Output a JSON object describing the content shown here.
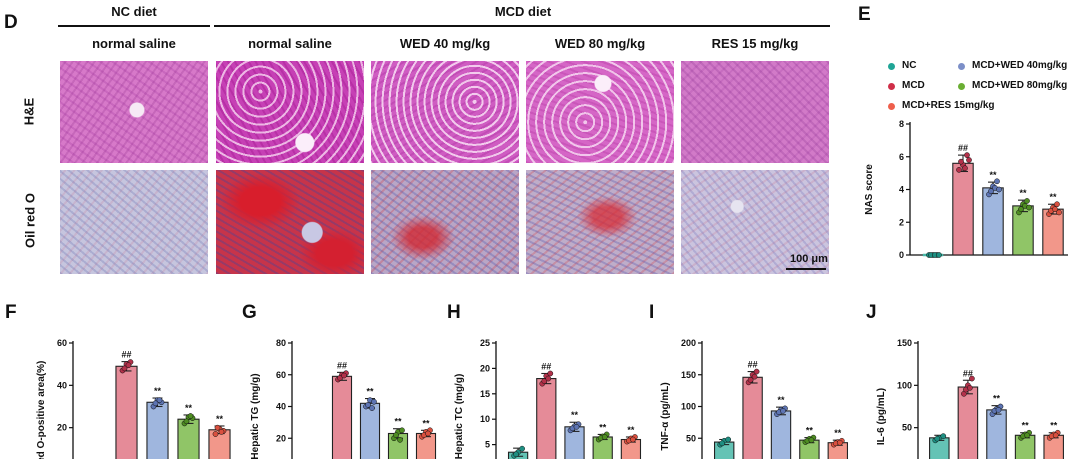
{
  "figure": {
    "panel_d": {
      "letter": "D",
      "group_headers": [
        {
          "label": "NC diet"
        },
        {
          "label": "MCD diet"
        }
      ],
      "column_headers": [
        "normal saline",
        "normal saline",
        "WED 40 mg/kg",
        "WED 80 mg/kg",
        "RES 15 mg/kg"
      ],
      "row_labels": [
        "H&E",
        "Oil red O"
      ],
      "scale_bar": "100 μm"
    }
  },
  "colors": {
    "NC": "#49b9a8",
    "MCD": "#e07786",
    "MCD+WED 40mg/kg": "#8ea9d8",
    "MCD+WED 80mg/kg": "#7dbb4c",
    "MCD+RES 15mg/kg": "#f08576"
  },
  "legend": [
    {
      "label": "NC",
      "color": "#1fa596"
    },
    {
      "label": "MCD",
      "color": "#cf2f48"
    },
    {
      "label": "MCD+RES 15mg/kg",
      "color": "#ee5f4c"
    },
    {
      "label": "MCD+WED 40mg/kg",
      "color": "#7c8fc8"
    },
    {
      "label": "MCD+WED 80mg/kg",
      "color": "#6aae33"
    }
  ],
  "chart_data": [
    {
      "letter": "E",
      "type": "bar",
      "title": "",
      "ylabel": "NAS score",
      "ylim": [
        0,
        8
      ],
      "yticks": [
        0,
        2,
        4,
        6,
        8
      ],
      "categories": [
        "NC",
        "MCD",
        "MCD+WED 40mg/kg",
        "MCD+WED 80mg/kg",
        "MCD+RES 15mg/kg"
      ],
      "values": [
        0,
        5.6,
        4.1,
        3.0,
        2.8
      ],
      "errors": [
        0.05,
        0.5,
        0.35,
        0.35,
        0.3
      ],
      "points": [
        [
          0,
          0,
          0,
          0,
          0,
          0
        ],
        [
          5.2,
          5.5,
          6.1,
          5.7,
          5.3,
          5.8
        ],
        [
          3.7,
          4.2,
          4.5,
          3.9,
          4.1,
          4.0
        ],
        [
          2.6,
          3.1,
          3.3,
          2.8,
          3.0,
          2.9
        ],
        [
          2.5,
          2.9,
          3.1,
          2.7,
          2.8,
          2.6
        ]
      ],
      "sig": [
        "",
        "##",
        "**",
        "**",
        "**"
      ],
      "grid": false
    },
    {
      "letter": "F",
      "type": "bar",
      "title": "",
      "ylabel": "l red O-positive area(%)",
      "ylim": [
        0,
        60
      ],
      "yticks": [
        20,
        40,
        60
      ],
      "categories": [
        "NC",
        "MCD",
        "MCD+WED 40mg/kg",
        "MCD+WED 80mg/kg",
        "MCD+RES 15mg/kg"
      ],
      "values": [
        0,
        49,
        32,
        24,
        19
      ],
      "errors": [
        0,
        2.2,
        2,
        2,
        1.8
      ],
      "points": [
        [],
        [
          47,
          50,
          51,
          48,
          49.5
        ],
        [
          30,
          33,
          32,
          31.5,
          33
        ],
        [
          22,
          25,
          24.5,
          23,
          25.5
        ],
        [
          17,
          19.5,
          18.5,
          20,
          18
        ]
      ],
      "sig": [
        "",
        "##",
        "**",
        "**",
        "**"
      ],
      "grid": false
    },
    {
      "letter": "G",
      "type": "bar",
      "title": "",
      "ylabel": "Hepatic TG (mg/g)",
      "ylim": [
        0,
        80
      ],
      "yticks": [
        20,
        40,
        60,
        80
      ],
      "categories": [
        "NC",
        "MCD",
        "MCD+WED 40mg/kg",
        "MCD+WED 80mg/kg",
        "MCD+RES 15mg/kg"
      ],
      "values": [
        0,
        59,
        42,
        23,
        23
      ],
      "errors": [
        0,
        2.5,
        3,
        3,
        2
      ],
      "points": [
        [],
        [
          57,
          60,
          61,
          58,
          59.5
        ],
        [
          40,
          44,
          43,
          41,
          39
        ],
        [
          20,
          24,
          25,
          22,
          19
        ],
        [
          21,
          24,
          25,
          22,
          23
        ]
      ],
      "sig": [
        "",
        "##",
        "**",
        "**",
        "**"
      ],
      "grid": false
    },
    {
      "letter": "H",
      "type": "bar",
      "title": "",
      "ylabel": "Hepatic TC (mg/g)",
      "ylim": [
        0,
        25
      ],
      "yticks": [
        5,
        10,
        15,
        20,
        25
      ],
      "categories": [
        "NC",
        "MCD",
        "MCD+WED 40mg/kg",
        "MCD+WED 80mg/kg",
        "MCD+RES 15mg/kg"
      ],
      "values": [
        3.5,
        18,
        8.5,
        6.5,
        6
      ],
      "errors": [
        0.8,
        1,
        0.9,
        0.5,
        0.5
      ],
      "points": [
        [
          2.8,
          3.5,
          4.2,
          3.1
        ],
        [
          17,
          18.5,
          19,
          17.5,
          18
        ],
        [
          7.8,
          8.6,
          9,
          8.2,
          8.5
        ],
        [
          6,
          6.6,
          7,
          6.3,
          6.5
        ],
        [
          5.6,
          6.2,
          6.5,
          5.8,
          6
        ]
      ],
      "sig": [
        "",
        "##",
        "**",
        "**",
        "**"
      ],
      "grid": false
    },
    {
      "letter": "I",
      "type": "bar",
      "title": "",
      "ylabel": "TNF-α (pg/mL)",
      "ylim": [
        0,
        200
      ],
      "yticks": [
        50,
        100,
        150,
        200
      ],
      "categories": [
        "NC",
        "MCD",
        "MCD+WED 40mg/kg",
        "MCD+WED 80mg/kg",
        "MCD+RES 15mg/kg"
      ],
      "values": [
        44,
        146,
        93,
        47,
        43
      ],
      "errors": [
        4,
        9,
        6,
        4,
        4
      ],
      "points": [
        [
          40,
          46,
          48,
          42
        ],
        [
          138,
          150,
          155,
          142,
          147
        ],
        [
          88,
          95,
          97,
          91,
          93
        ],
        [
          44,
          49,
          51,
          46,
          47
        ],
        [
          40,
          44,
          46,
          42,
          43
        ]
      ],
      "sig": [
        "",
        "##",
        "**",
        "**",
        "**"
      ],
      "grid": false
    },
    {
      "letter": "J",
      "type": "bar",
      "title": "",
      "ylabel": "IL-6 (pg/mL)",
      "ylim": [
        0,
        150
      ],
      "yticks": [
        50,
        100,
        150
      ],
      "categories": [
        "NC",
        "MCD",
        "MCD+WED 40mg/kg",
        "MCD+WED 80mg/kg",
        "MCD+RES 15mg/kg"
      ],
      "values": [
        38,
        98,
        71,
        41,
        41
      ],
      "errors": [
        3,
        8,
        5,
        3,
        3
      ],
      "points": [
        [
          35,
          38,
          40,
          37
        ],
        [
          90,
          100,
          108,
          95,
          97
        ],
        [
          66,
          72,
          75,
          70,
          71
        ],
        [
          38,
          42,
          44,
          40,
          41
        ],
        [
          38,
          42,
          44,
          40,
          41
        ]
      ],
      "sig": [
        "",
        "##",
        "**",
        "**",
        "**"
      ],
      "grid": false
    }
  ]
}
